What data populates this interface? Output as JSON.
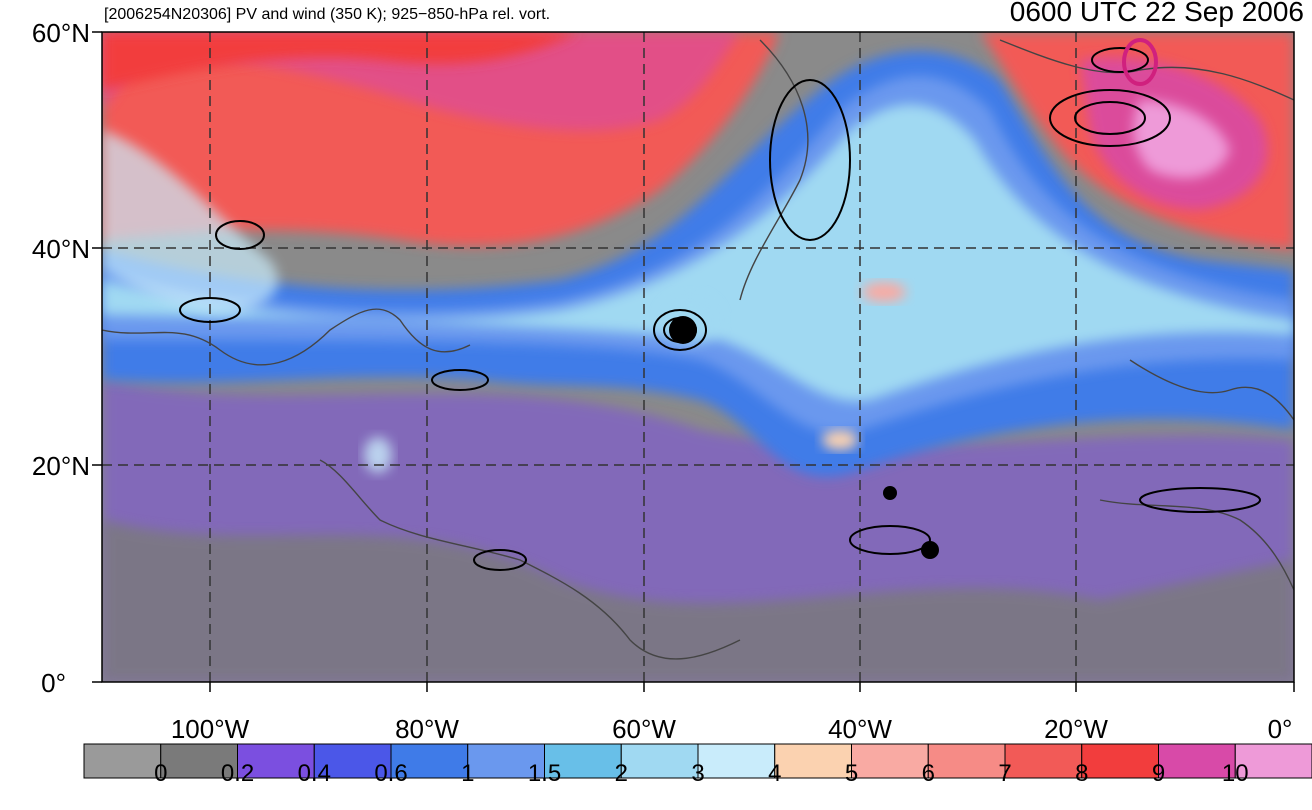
{
  "header": {
    "left_title": "[2006254N20306] PV and wind (350 K); 925−850-hPa rel. vort.",
    "right_title": "0600 UTC 22 Sep 2006"
  },
  "axes": {
    "lat_labels": [
      "60°N",
      "40°N",
      "20°N",
      "0°"
    ],
    "lon_labels": [
      "100°W",
      "80°W",
      "60°W",
      "40°W",
      "20°W",
      "0°"
    ],
    "lon_range": [
      -110,
      0
    ],
    "lat_range": [
      0,
      60
    ],
    "gridlines": "dashed every 20° lat / 20° lon"
  },
  "colorbar": {
    "tick_labels": [
      "0",
      "0.2",
      "0.4",
      "0.6",
      "1",
      "1.5",
      "2",
      "3",
      "4",
      "5",
      "6",
      "7",
      "8",
      "9",
      "10"
    ],
    "colors": [
      "#9a9a9a",
      "#7a7a7a",
      "#7b4fe0",
      "#4b57e8",
      "#3f7be8",
      "#6a98ee",
      "#68bfe8",
      "#a0d9f2",
      "#c9ecfb",
      "#fbd2b0",
      "#f9aaa3",
      "#f68b86",
      "#f25a57",
      "#f23d3d",
      "#d84aa8",
      "#ee9ad8"
    ]
  },
  "colors": {
    "frame": "#000000",
    "coastline": "#444444",
    "contour": "#000000",
    "storm_marker": "#d0207e"
  }
}
